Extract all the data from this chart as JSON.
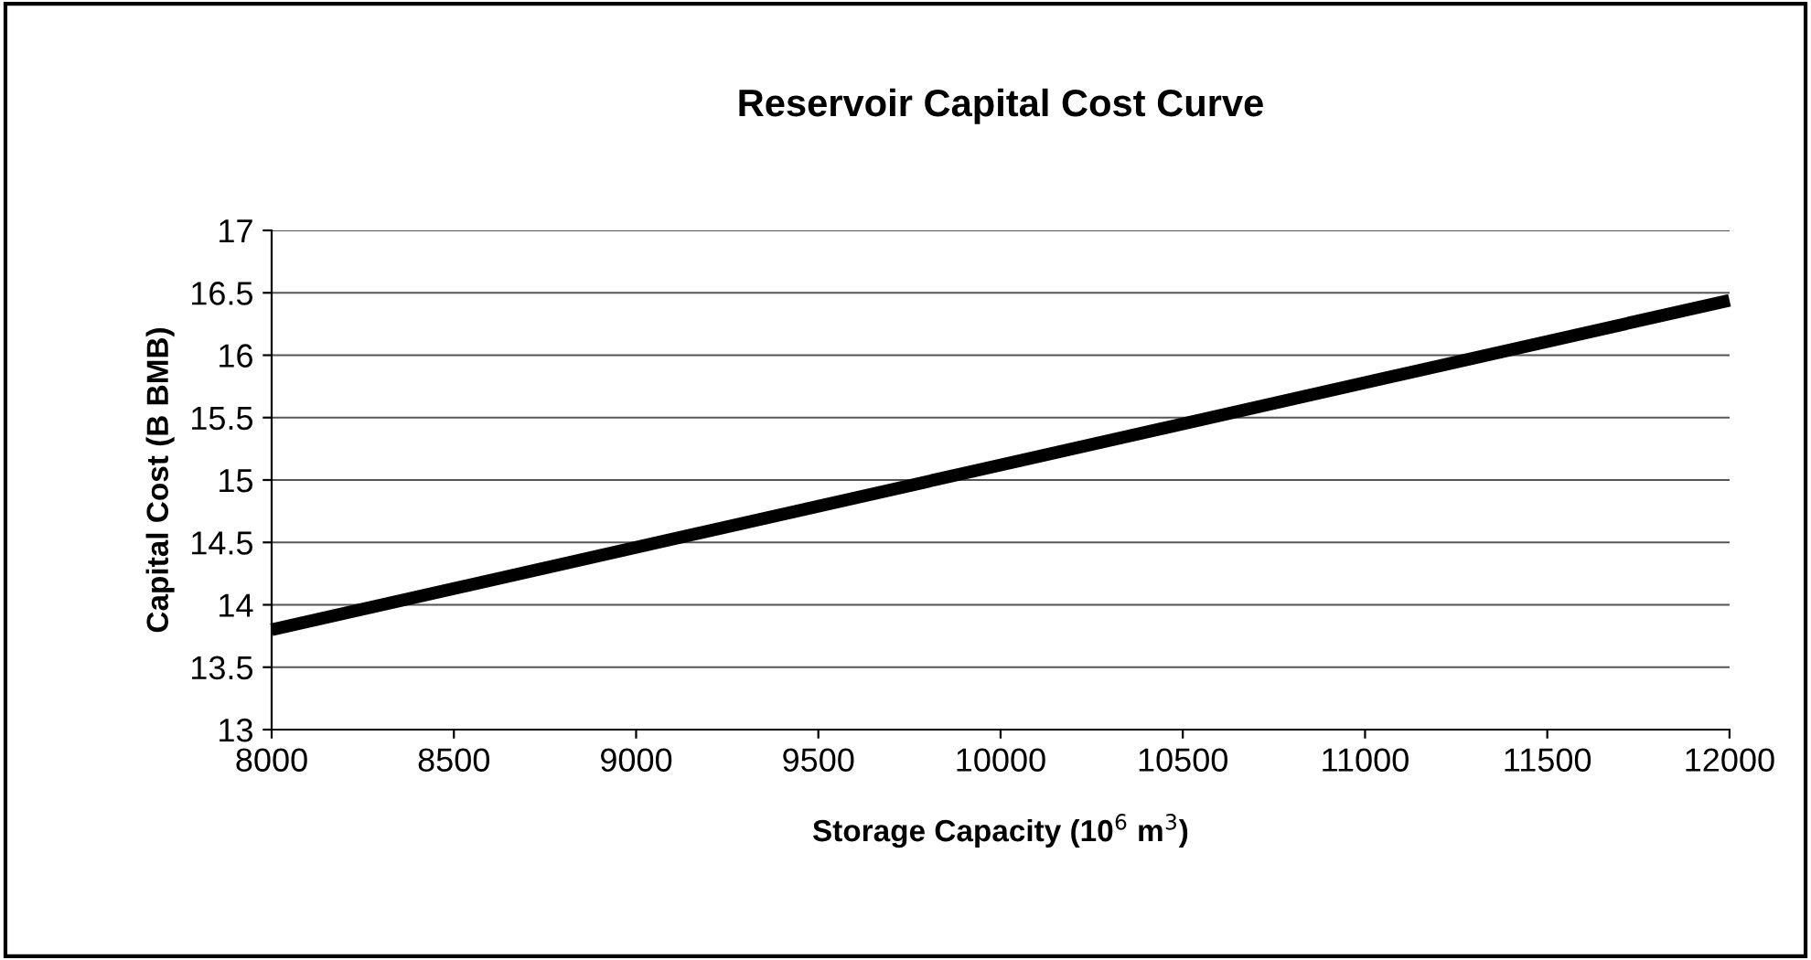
{
  "chart_data": {
    "type": "line",
    "title": "Reservoir Capital Cost Curve",
    "xlabel": "Storage Capacity (10$^{6}$ m$^{3}$)",
    "ylabel": "Capital Cost (B BMB)",
    "x": [
      8000,
      12000
    ],
    "series": [
      {
        "color": "#000000",
        "values": [
          13.8,
          16.44
        ]
      }
    ],
    "xlim": [
      8000,
      12000
    ],
    "xticks": [
      8000,
      8500,
      9000,
      9500,
      10000,
      10500,
      11000,
      11500,
      12000
    ],
    "ylim": [
      13,
      17
    ],
    "yticks": [
      13,
      13.5,
      14,
      14.5,
      15,
      15.5,
      16,
      16.5,
      17
    ],
    "grid": "y",
    "marker": "none",
    "line_style": "solid"
  }
}
